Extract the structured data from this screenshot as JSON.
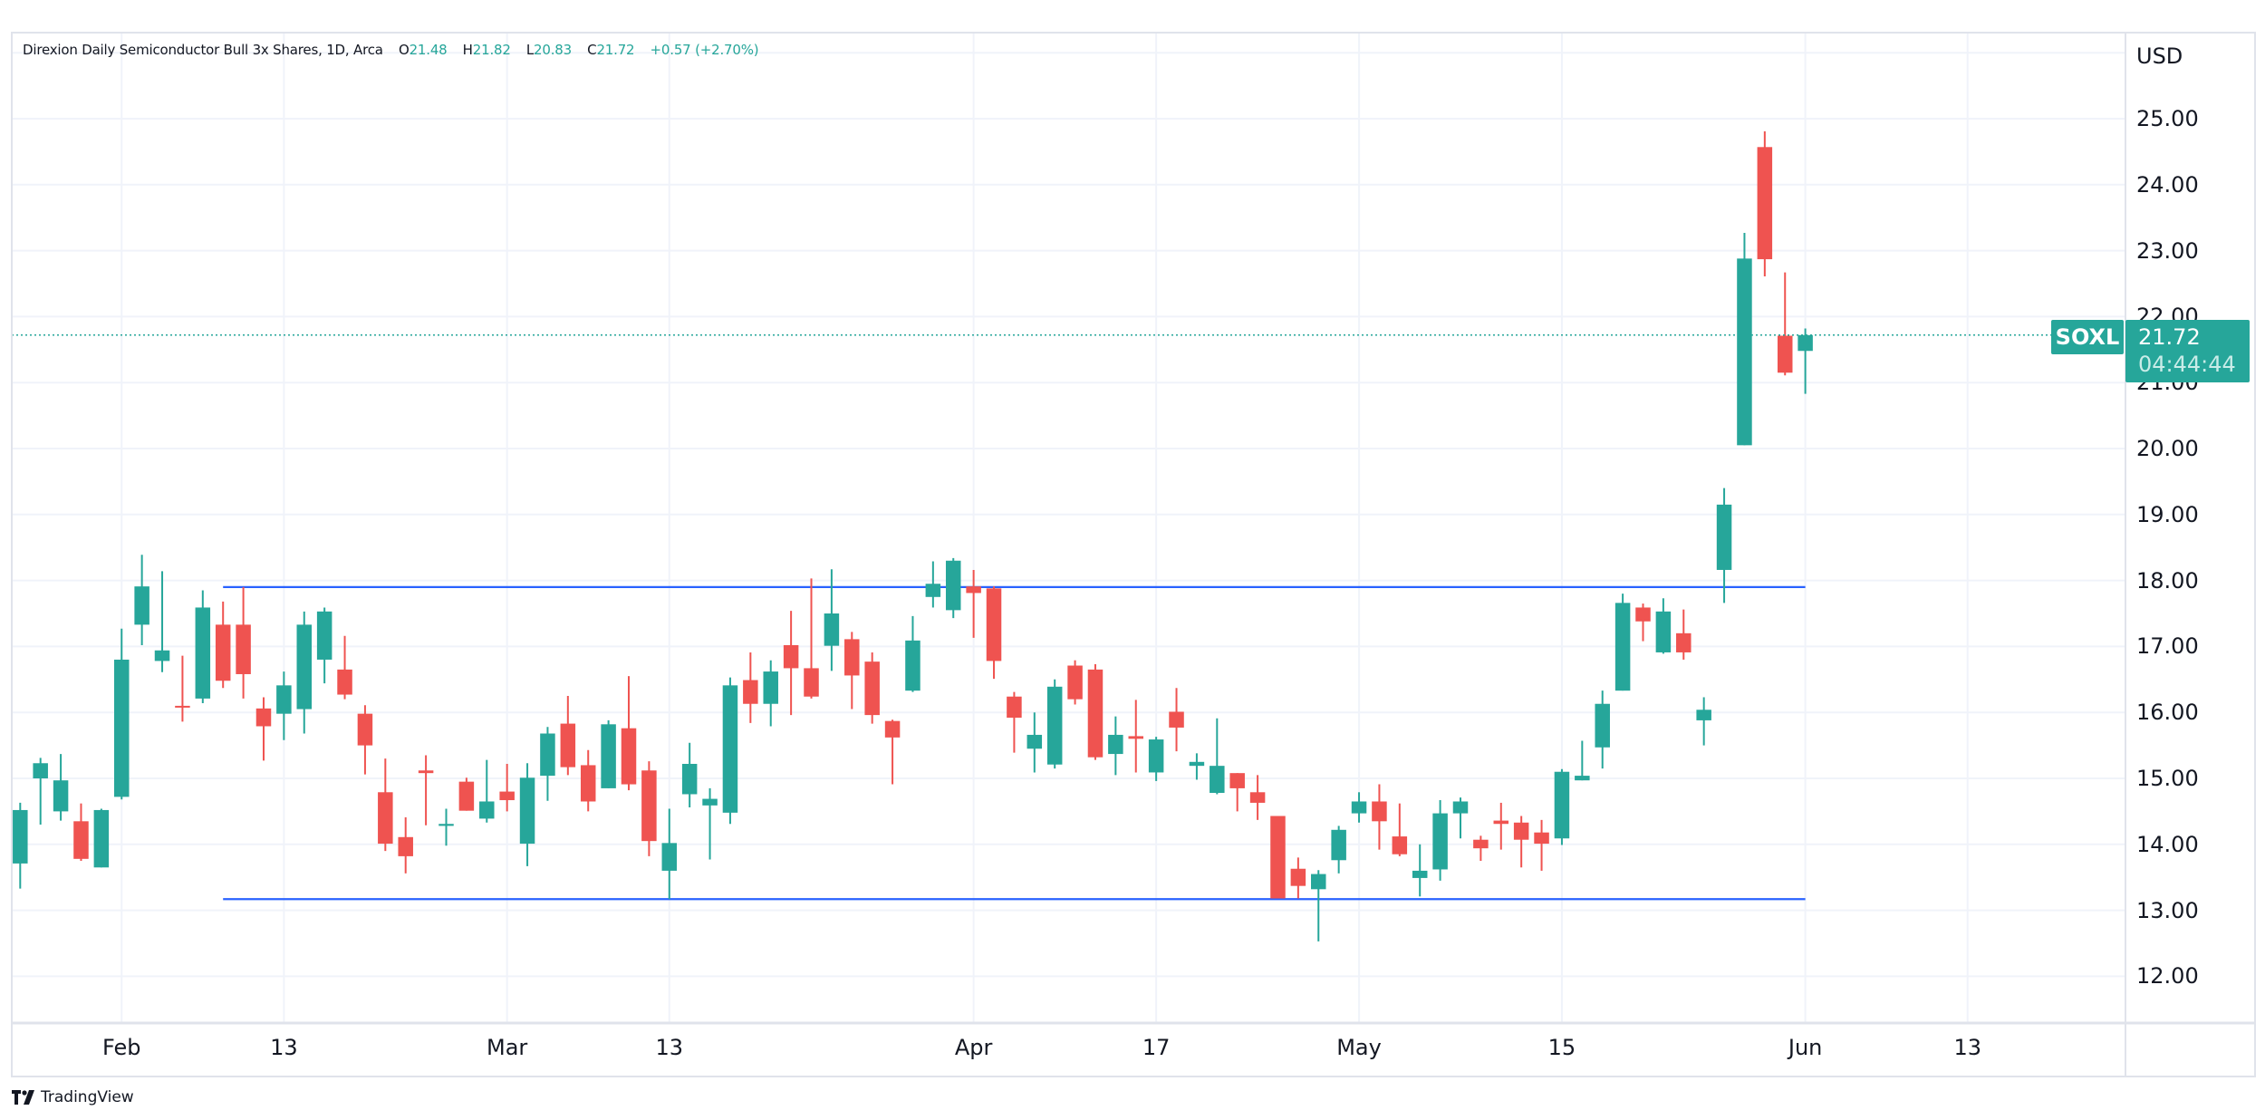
{
  "header": {
    "name": "Direxion Daily Semiconductor Bull 3x Shares",
    "interval": "1D",
    "exchange": "Arca",
    "open_label": "O",
    "open": "21.48",
    "high_label": "H",
    "high": "21.82",
    "low_label": "L",
    "low": "20.83",
    "close_label": "C",
    "close": "21.72",
    "change": "+0.57 (+2.70%)"
  },
  "price_axis": {
    "currency": "USD",
    "ticks": [
      "25.00",
      "24.00",
      "23.00",
      "22.00",
      "21.00",
      "20.00",
      "19.00",
      "18.00",
      "17.00",
      "16.00",
      "15.00",
      "14.00",
      "13.00",
      "12.00"
    ]
  },
  "time_axis": {
    "labels": [
      "Feb",
      "13",
      "Mar",
      "13",
      "Apr",
      "17",
      "May",
      "15",
      "Jun",
      "13"
    ]
  },
  "last_price_badge": {
    "symbol": "SOXL",
    "price": "21.72",
    "countdown": "04:44:44"
  },
  "branding": {
    "logo_text": "TradingView",
    "logo_mark": "TV"
  },
  "colors": {
    "up": "#26a69a",
    "down": "#ef5350",
    "trendline": "#2962ff",
    "grid": "#f0f3fa",
    "border": "#e0e3eb",
    "text": "#131722"
  },
  "chart_data": {
    "type": "candlestick",
    "title": "Direxion Daily Semiconductor Bull 3x Shares, 1D, Arca",
    "symbol": "SOXL",
    "ylabel": "USD",
    "ylim": [
      11.2,
      26.3
    ],
    "grid": true,
    "x_tick_labels": [
      "Feb",
      "13",
      "Mar",
      "13",
      "Apr",
      "17",
      "May",
      "15",
      "Jun",
      "13"
    ],
    "x_tick_candle_index": [
      5,
      13,
      24,
      32,
      47,
      56,
      66,
      76,
      88,
      96
    ],
    "ohlc": [
      [
        13.71,
        14.63,
        13.33,
        14.52
      ],
      [
        15.0,
        15.31,
        14.3,
        15.23
      ],
      [
        14.5,
        15.37,
        14.36,
        14.97
      ],
      [
        14.35,
        14.62,
        13.75,
        13.78
      ],
      [
        13.65,
        14.54,
        13.65,
        14.52
      ],
      [
        14.72,
        17.27,
        14.68,
        16.8
      ],
      [
        17.33,
        18.39,
        17.02,
        17.91
      ],
      [
        16.78,
        18.14,
        16.61,
        16.94
      ],
      [
        16.1,
        16.86,
        15.86,
        16.08
      ],
      [
        16.21,
        17.85,
        16.14,
        17.59
      ],
      [
        17.33,
        17.68,
        16.37,
        16.48
      ],
      [
        17.33,
        17.9,
        16.21,
        16.58
      ],
      [
        16.06,
        16.23,
        15.27,
        15.79
      ],
      [
        15.98,
        16.62,
        15.58,
        16.41
      ],
      [
        16.05,
        17.53,
        15.68,
        17.33
      ],
      [
        16.8,
        17.59,
        16.44,
        17.53
      ],
      [
        16.65,
        17.16,
        16.2,
        16.27
      ],
      [
        15.98,
        16.11,
        15.06,
        15.5
      ],
      [
        14.79,
        15.3,
        13.9,
        14.01
      ],
      [
        14.11,
        14.41,
        13.56,
        13.82
      ],
      [
        15.12,
        15.35,
        14.29,
        15.08
      ],
      [
        14.28,
        14.54,
        13.98,
        14.31
      ],
      [
        14.95,
        15.01,
        14.51,
        14.51
      ],
      [
        14.39,
        15.28,
        14.33,
        14.65
      ],
      [
        14.8,
        15.22,
        14.5,
        14.67
      ],
      [
        14.01,
        15.23,
        13.67,
        15.01
      ],
      [
        15.04,
        15.78,
        14.66,
        15.68
      ],
      [
        15.83,
        16.25,
        15.05,
        15.17
      ],
      [
        15.2,
        15.43,
        14.5,
        14.65
      ],
      [
        14.85,
        15.88,
        14.85,
        15.82
      ],
      [
        15.76,
        16.55,
        14.82,
        14.91
      ],
      [
        15.12,
        15.26,
        13.82,
        14.05
      ],
      [
        13.6,
        14.54,
        13.17,
        14.02
      ],
      [
        14.76,
        15.54,
        14.56,
        15.22
      ],
      [
        14.59,
        14.85,
        13.77,
        14.69
      ],
      [
        14.48,
        16.53,
        14.31,
        16.41
      ],
      [
        16.49,
        16.91,
        15.84,
        16.13
      ],
      [
        16.13,
        16.79,
        15.79,
        16.62
      ],
      [
        17.02,
        17.54,
        15.96,
        16.67
      ],
      [
        16.67,
        18.03,
        16.21,
        16.24
      ],
      [
        17.01,
        18.17,
        16.63,
        17.5
      ],
      [
        17.11,
        17.22,
        16.05,
        16.56
      ],
      [
        16.77,
        16.91,
        15.83,
        15.96
      ],
      [
        15.87,
        15.89,
        14.91,
        15.62
      ],
      [
        16.33,
        17.46,
        16.31,
        17.09
      ],
      [
        17.75,
        18.29,
        17.59,
        17.95
      ],
      [
        17.55,
        18.34,
        17.43,
        18.3
      ],
      [
        17.91,
        18.16,
        17.13,
        17.81
      ],
      [
        17.88,
        17.91,
        16.51,
        16.78
      ],
      [
        16.24,
        16.31,
        15.39,
        15.92
      ],
      [
        15.45,
        16.0,
        15.09,
        15.66
      ],
      [
        15.21,
        16.5,
        15.15,
        16.39
      ],
      [
        16.71,
        16.79,
        16.12,
        16.2
      ],
      [
        16.65,
        16.73,
        15.28,
        15.32
      ],
      [
        15.37,
        15.94,
        15.05,
        15.66
      ],
      [
        15.64,
        16.19,
        15.09,
        15.6
      ],
      [
        15.09,
        15.63,
        14.96,
        15.59
      ],
      [
        16.01,
        16.37,
        15.41,
        15.77
      ],
      [
        15.19,
        15.38,
        14.98,
        15.25
      ],
      [
        14.78,
        15.91,
        14.76,
        15.19
      ],
      [
        15.08,
        15.08,
        14.5,
        14.85
      ],
      [
        14.79,
        15.05,
        14.37,
        14.63
      ],
      [
        14.43,
        14.43,
        13.18,
        13.18
      ],
      [
        13.63,
        13.8,
        13.18,
        13.37
      ],
      [
        13.32,
        13.61,
        12.53,
        13.55
      ],
      [
        13.76,
        14.28,
        13.56,
        14.22
      ],
      [
        14.47,
        14.79,
        14.33,
        14.65
      ],
      [
        14.65,
        14.91,
        13.92,
        14.35
      ],
      [
        14.12,
        14.62,
        13.82,
        13.85
      ],
      [
        13.49,
        14.0,
        13.21,
        13.6
      ],
      [
        13.62,
        14.67,
        13.45,
        14.47
      ],
      [
        14.47,
        14.71,
        14.09,
        14.65
      ],
      [
        14.07,
        14.13,
        13.75,
        13.94
      ],
      [
        14.36,
        14.63,
        13.92,
        14.31
      ],
      [
        14.33,
        14.43,
        13.65,
        14.07
      ],
      [
        14.18,
        14.37,
        13.6,
        14.01
      ],
      [
        14.09,
        15.14,
        13.99,
        15.1
      ],
      [
        14.97,
        15.57,
        14.97,
        15.04
      ],
      [
        15.47,
        16.33,
        15.15,
        16.13
      ],
      [
        16.33,
        17.8,
        16.33,
        17.66
      ],
      [
        17.59,
        17.65,
        17.08,
        17.38
      ],
      [
        16.91,
        17.73,
        16.89,
        17.53
      ],
      [
        17.2,
        17.56,
        16.8,
        16.91
      ],
      [
        15.88,
        16.23,
        15.5,
        16.04
      ],
      [
        18.16,
        19.4,
        17.66,
        19.15
      ],
      [
        20.05,
        23.27,
        20.05,
        22.88
      ],
      [
        24.57,
        24.81,
        22.61,
        22.87
      ],
      [
        21.71,
        22.67,
        21.11,
        21.15
      ],
      [
        21.48,
        21.82,
        20.83,
        21.72
      ]
    ],
    "trendlines": [
      {
        "name": "resistance",
        "from_index": 10,
        "to_index": 88,
        "price": 17.9
      },
      {
        "name": "support",
        "from_index": 10,
        "to_index": 88,
        "price": 13.17
      }
    ],
    "last_price": 21.72
  }
}
